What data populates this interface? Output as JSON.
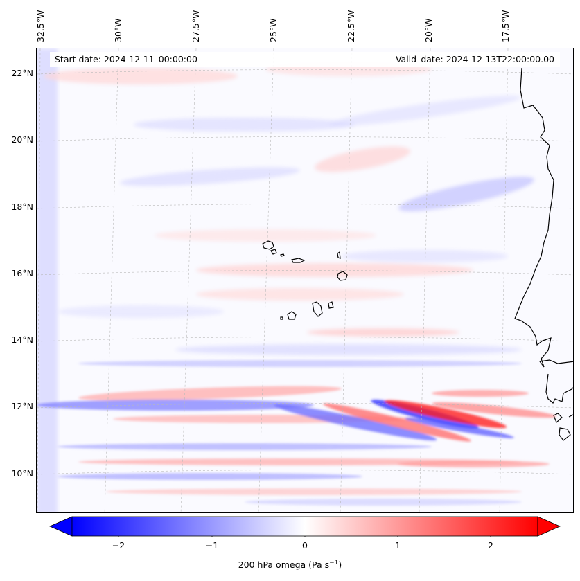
{
  "header": {
    "start_date": "Start date: 2024-12-11_00:00:00",
    "valid_date": "Valid_date: 2024-12-13T22:00:00.00"
  },
  "map": {
    "variable": "200 hPa omega",
    "longitude_labels": [
      {
        "label": "32.5°W",
        "value": -32.5
      },
      {
        "label": "30°W",
        "value": -30
      },
      {
        "label": "27.5°W",
        "value": -27.5
      },
      {
        "label": "25°W",
        "value": -25
      },
      {
        "label": "22.5°W",
        "value": -22.5
      },
      {
        "label": "20°W",
        "value": -20
      },
      {
        "label": "17.5°W",
        "value": -17.5
      }
    ],
    "latitude_labels": [
      {
        "label": "22°N",
        "value": 22
      },
      {
        "label": "20°N",
        "value": 20
      },
      {
        "label": "18°N",
        "value": 18
      },
      {
        "label": "16°N",
        "value": 16
      },
      {
        "label": "14°N",
        "value": 14
      },
      {
        "label": "12°N",
        "value": 12
      },
      {
        "label": "10°N",
        "value": 10
      }
    ],
    "lon_range": [
      -33.2,
      -15.8
    ],
    "lat_range": [
      8.9,
      22.8
    ],
    "gridlines": true,
    "features": [
      "Cape Verde islands",
      "West African coastline"
    ],
    "colors": {
      "negative": "#0000ff",
      "zero": "#ffffff",
      "positive": "#ff0000",
      "coast": "#000000"
    }
  },
  "colorbar": {
    "ticks": [
      {
        "label": "−2",
        "value": -2
      },
      {
        "label": "−1",
        "value": -1
      },
      {
        "label": "0",
        "value": 0
      },
      {
        "label": "1",
        "value": 1
      },
      {
        "label": "2",
        "value": 2
      }
    ],
    "range": [
      -2.5,
      2.5
    ],
    "title_main": "200 hPa omega (Pa s",
    "title_sup": "−1",
    "title_end": ")",
    "extend": "both"
  }
}
